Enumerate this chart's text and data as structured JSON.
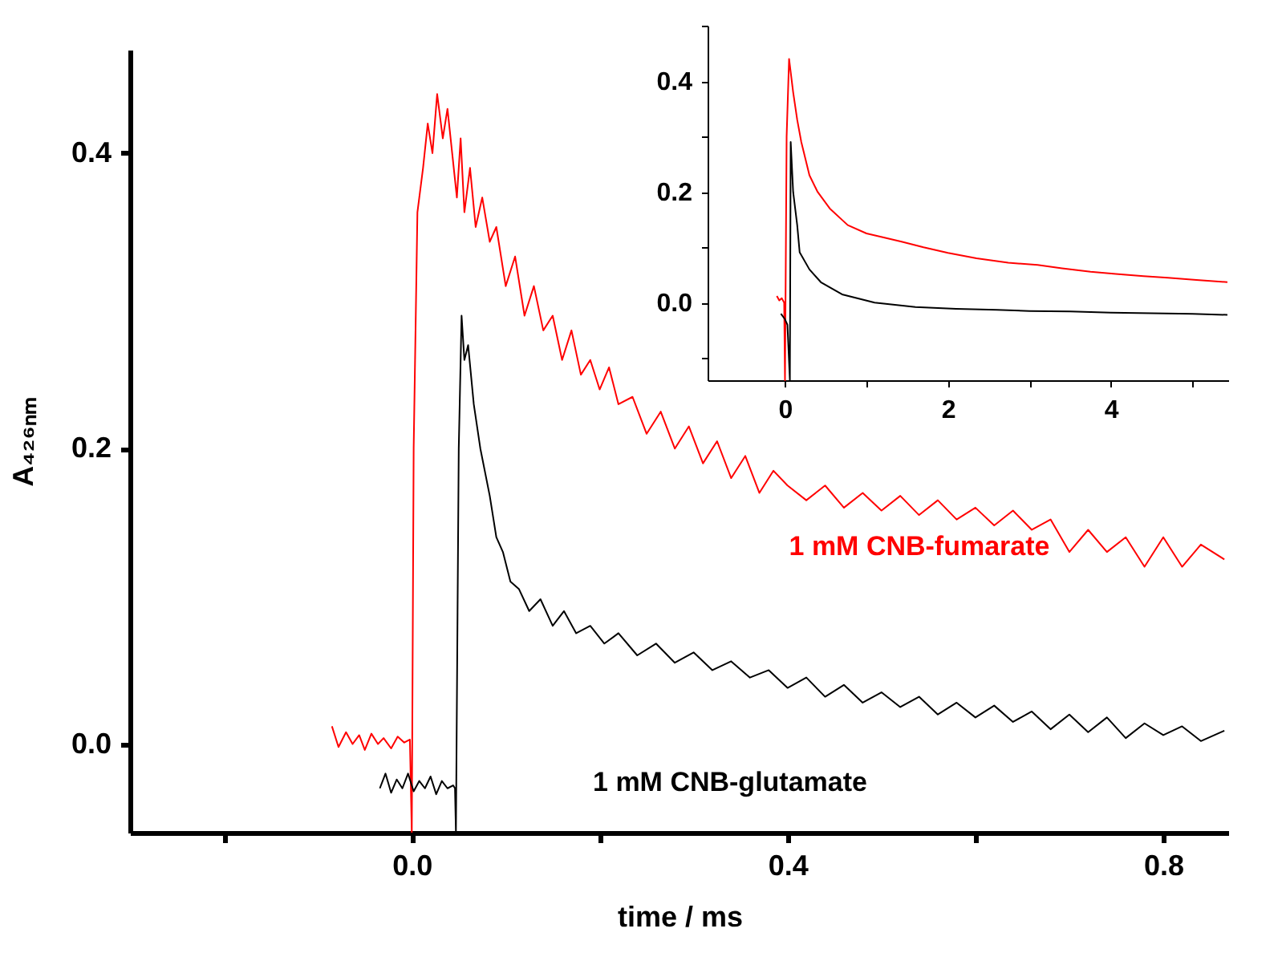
{
  "chart_data": [
    {
      "type": "line",
      "xlabel": "time / ms",
      "ylabel": "A₄₂₆ₙₘ",
      "series": [
        {
          "color": "#ff0000",
          "x": [
            -0.085,
            -0.078,
            -0.07,
            -0.063,
            -0.056,
            -0.05,
            -0.043,
            -0.036,
            -0.03,
            -0.022,
            -0.015,
            -0.008,
            -0.002,
            0.0,
            0.002,
            0.006,
            0.012,
            0.017,
            0.022,
            0.027,
            0.033,
            0.038,
            0.043,
            0.048,
            0.052,
            0.056,
            0.062,
            0.068,
            0.075,
            0.083,
            0.09,
            0.1,
            0.11,
            0.12,
            0.13,
            0.14,
            0.15,
            0.16,
            0.17,
            0.18,
            0.19,
            0.2,
            0.21,
            0.22,
            0.235,
            0.25,
            0.265,
            0.28,
            0.295,
            0.31,
            0.325,
            0.34,
            0.355,
            0.37,
            0.385,
            0.4,
            0.42,
            0.44,
            0.46,
            0.48,
            0.5,
            0.52,
            0.54,
            0.56,
            0.58,
            0.6,
            0.62,
            0.64,
            0.66,
            0.68,
            0.7,
            0.72,
            0.74,
            0.76,
            0.78,
            0.8,
            0.82,
            0.84,
            0.865
          ],
          "values": [
            0.012,
            -0.002,
            0.008,
            0.0,
            0.006,
            -0.004,
            0.007,
            0.0,
            0.004,
            -0.003,
            0.005,
            0.001,
            0.003,
            -0.06,
            0.2,
            0.36,
            0.39,
            0.42,
            0.4,
            0.44,
            0.41,
            0.43,
            0.4,
            0.37,
            0.41,
            0.36,
            0.39,
            0.35,
            0.37,
            0.34,
            0.35,
            0.31,
            0.33,
            0.29,
            0.31,
            0.28,
            0.29,
            0.26,
            0.28,
            0.25,
            0.26,
            0.24,
            0.255,
            0.23,
            0.235,
            0.21,
            0.225,
            0.2,
            0.215,
            0.19,
            0.205,
            0.18,
            0.195,
            0.17,
            0.185,
            0.175,
            0.165,
            0.175,
            0.16,
            0.17,
            0.158,
            0.168,
            0.155,
            0.165,
            0.152,
            0.16,
            0.148,
            0.158,
            0.145,
            0.152,
            0.13,
            0.145,
            0.13,
            0.14,
            0.12,
            0.14,
            0.12,
            0.135,
            0.125
          ]
        },
        {
          "color": "#000000",
          "x": [
            -0.034,
            -0.028,
            -0.022,
            -0.016,
            -0.01,
            -0.004,
            0.002,
            0.008,
            0.014,
            0.02,
            0.026,
            0.032,
            0.038,
            0.044,
            0.046,
            0.047,
            0.05,
            0.053,
            0.056,
            0.06,
            0.066,
            0.073,
            0.083,
            0.09,
            0.097,
            0.105,
            0.114,
            0.125,
            0.137,
            0.15,
            0.162,
            0.175,
            0.19,
            0.205,
            0.22,
            0.24,
            0.26,
            0.28,
            0.3,
            0.32,
            0.34,
            0.36,
            0.38,
            0.4,
            0.42,
            0.44,
            0.46,
            0.48,
            0.5,
            0.52,
            0.54,
            0.56,
            0.58,
            0.6,
            0.62,
            0.64,
            0.66,
            0.68,
            0.7,
            0.72,
            0.74,
            0.76,
            0.78,
            0.8,
            0.82,
            0.84,
            0.865
          ],
          "values": [
            -0.03,
            -0.02,
            -0.033,
            -0.024,
            -0.03,
            -0.02,
            -0.032,
            -0.025,
            -0.03,
            -0.022,
            -0.034,
            -0.025,
            -0.03,
            -0.028,
            -0.03,
            -0.06,
            0.2,
            0.29,
            0.26,
            0.27,
            0.23,
            0.2,
            0.168,
            0.14,
            0.13,
            0.11,
            0.105,
            0.09,
            0.098,
            0.08,
            0.09,
            0.075,
            0.08,
            0.068,
            0.075,
            0.06,
            0.068,
            0.055,
            0.062,
            0.05,
            0.056,
            0.045,
            0.05,
            0.038,
            0.045,
            0.032,
            0.04,
            0.028,
            0.035,
            0.025,
            0.032,
            0.02,
            0.028,
            0.018,
            0.026,
            0.015,
            0.022,
            0.01,
            0.02,
            0.008,
            0.018,
            0.004,
            0.014,
            0.006,
            0.012,
            0.002,
            0.009
          ]
        }
      ],
      "xlim": [
        -0.3,
        0.87
      ],
      "ylim": [
        -0.06,
        0.47
      ],
      "xticks": [
        {
          "value": -0.2,
          "label": null
        },
        {
          "value": 0,
          "label": "0.0"
        },
        {
          "value": 0.2,
          "label": null
        },
        0.4,
        {
          "value": 0.6,
          "label": null
        },
        0.8
      ],
      "yticks": [
        {
          "value": 0,
          "label": "0.0"
        },
        0.2,
        0.4
      ],
      "annotations": [
        "1 mM CNB-fumarate",
        "1 mM CNB-glutamate"
      ]
    },
    {
      "type": "line",
      "series": [
        {
          "color": "#ff0000",
          "x": [
            -0.1,
            -0.07,
            -0.04,
            -0.01,
            0.0,
            0.02,
            0.05,
            0.1,
            0.15,
            0.2,
            0.3,
            0.4,
            0.55,
            0.77,
            1.0,
            1.2,
            1.43,
            1.7,
            2.0,
            2.35,
            2.74,
            3.1,
            3.4,
            3.75,
            4.06,
            4.4,
            4.7,
            5.05,
            5.43
          ],
          "values": [
            0.012,
            0.004,
            0.008,
            0.0,
            -0.14,
            0.3,
            0.44,
            0.38,
            0.33,
            0.29,
            0.23,
            0.2,
            0.17,
            0.14,
            0.125,
            0.118,
            0.11,
            0.1,
            0.09,
            0.08,
            0.072,
            0.068,
            0.062,
            0.056,
            0.052,
            0.048,
            0.045,
            0.041,
            0.037
          ]
        },
        {
          "color": "#000000",
          "x": [
            -0.05,
            0.0,
            0.03,
            0.06,
            0.07,
            0.1,
            0.15,
            0.18,
            0.3,
            0.44,
            0.7,
            1.1,
            1.6,
            2.1,
            2.6,
            3.0,
            3.5,
            4.0,
            4.5,
            5.0,
            5.43
          ],
          "values": [
            -0.02,
            -0.03,
            -0.04,
            -0.14,
            0.29,
            0.2,
            0.14,
            0.091,
            0.06,
            0.037,
            0.015,
            0.0,
            -0.008,
            -0.011,
            -0.013,
            -0.015,
            -0.016,
            -0.018,
            -0.019,
            -0.02,
            -0.022
          ]
        }
      ],
      "xlim": [
        -0.95,
        5.45
      ],
      "ylim": [
        -0.14,
        0.5
      ],
      "xticks": [
        0,
        {
          "value": 1,
          "label": null
        },
        2,
        {
          "value": 3,
          "label": null
        },
        4,
        {
          "value": 5,
          "label": null
        }
      ],
      "yticks": [
        {
          "value": -0.1,
          "label": null
        },
        {
          "value": 0,
          "label": "0.0"
        },
        {
          "value": 0.1,
          "label": null
        },
        {
          "value": 0.2,
          "label": "0.2"
        },
        {
          "value": 0.3,
          "label": null
        },
        {
          "value": 0.4,
          "label": "0.4"
        },
        {
          "value": 0.5,
          "label": null
        }
      ]
    }
  ]
}
